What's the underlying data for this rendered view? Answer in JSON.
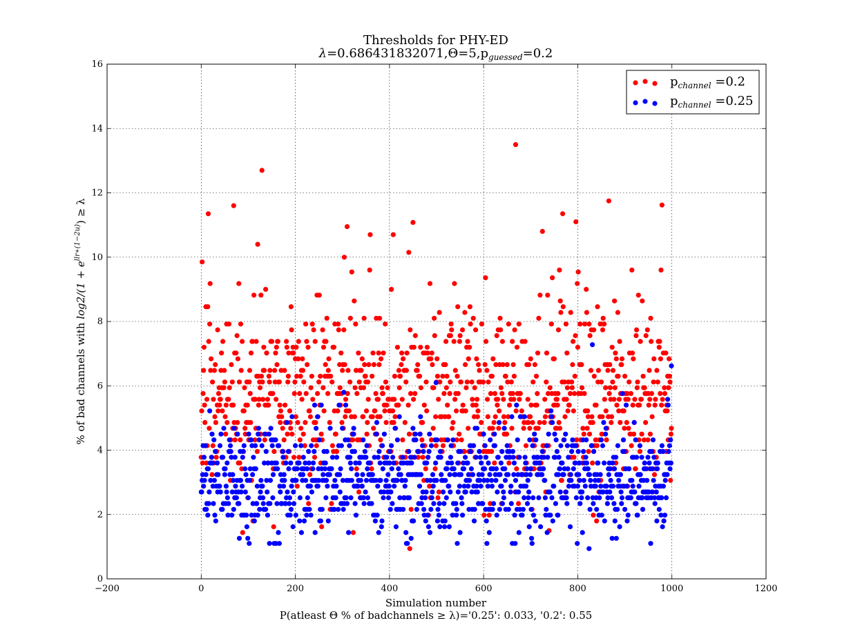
{
  "chart_data": {
    "type": "scatter",
    "title": "Thresholds for PHY-ED",
    "subtitle": {
      "lambda_symbol": "λ",
      "lambda_value": "=0.686431832071,",
      "theta_symbol": "Θ",
      "theta_value": "=5,p",
      "guessed_sub": "guessed",
      "guessed_value": "=0.2"
    },
    "xlabel": "Simulation number",
    "ylabel": {
      "prefix": "% of bad channels with ",
      "expr": "log2/(1 + e",
      "sup": "llr∗(1−2u)",
      "suffix": ") ≥ λ"
    },
    "footer": "P(atleast Θ % of badchannels ≥ λ)='0.25': 0.033, '0.2': 0.55",
    "xlim": [
      -200,
      1200
    ],
    "ylim": [
      0,
      16
    ],
    "xticks": [
      -200,
      0,
      200,
      400,
      600,
      800,
      1000,
      1200
    ],
    "xtick_labels": [
      "−200",
      "0",
      "200",
      "400",
      "600",
      "800",
      "1000",
      "1200"
    ],
    "yticks": [
      0,
      2,
      4,
      6,
      8,
      10,
      12,
      14,
      16
    ],
    "ytick_labels": [
      "0",
      "2",
      "4",
      "6",
      "8",
      "10",
      "12",
      "14",
      "16"
    ],
    "grid": true,
    "legend_position": "upper right",
    "series": [
      {
        "name_prefix": "p",
        "name_sub": "channel",
        "name_suffix": " =0.2",
        "color": "#ff0000",
        "n_points": 1000,
        "x_range": [
          0,
          999
        ],
        "y_range": [
          0.94,
          13.5
        ],
        "typical_y": [
          3.5,
          8.0
        ],
        "outliers": [
          {
            "x": 2,
            "y": 9.85
          },
          {
            "x": 15,
            "y": 11.35
          },
          {
            "x": 69,
            "y": 11.6
          },
          {
            "x": 120,
            "y": 10.4
          },
          {
            "x": 129,
            "y": 12.7
          },
          {
            "x": 304,
            "y": 10.0
          },
          {
            "x": 310,
            "y": 10.95
          },
          {
            "x": 359,
            "y": 10.7
          },
          {
            "x": 408,
            "y": 10.7
          },
          {
            "x": 441,
            "y": 10.15
          },
          {
            "x": 450,
            "y": 11.08
          },
          {
            "x": 668,
            "y": 13.5
          },
          {
            "x": 725,
            "y": 10.8
          },
          {
            "x": 768,
            "y": 11.35
          },
          {
            "x": 796,
            "y": 11.1
          },
          {
            "x": 866,
            "y": 11.75
          },
          {
            "x": 979,
            "y": 11.62
          },
          {
            "x": 443,
            "y": 0.94
          },
          {
            "x": 739,
            "y": 1.5
          }
        ]
      },
      {
        "name_prefix": "p",
        "name_sub": "channel",
        "name_suffix": " =0.25",
        "color": "#0000ff",
        "n_points": 1000,
        "x_range": [
          0,
          999
        ],
        "y_range": [
          0.94,
          7.3
        ],
        "typical_y": [
          1.8,
          4.8
        ],
        "outliers": [
          {
            "x": 155,
            "y": 1.1
          },
          {
            "x": 824,
            "y": 0.94
          },
          {
            "x": 831,
            "y": 7.28
          },
          {
            "x": 999,
            "y": 6.62
          },
          {
            "x": 499,
            "y": 6.1
          },
          {
            "x": 303,
            "y": 5.8
          }
        ]
      }
    ]
  }
}
